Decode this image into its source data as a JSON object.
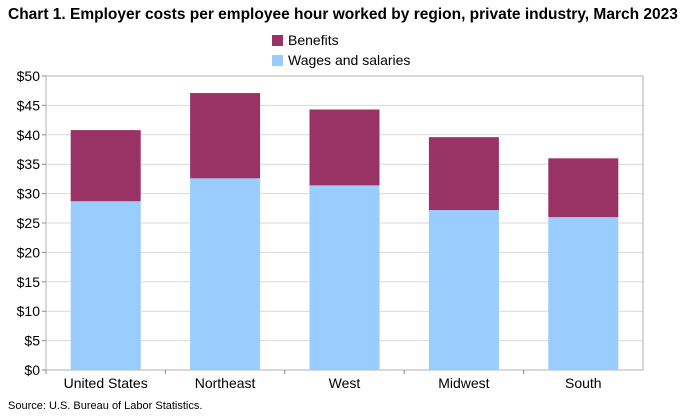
{
  "chart_data": {
    "type": "bar",
    "stacked": true,
    "title": "Chart 1. Employer costs per employee hour worked by region, private industry, March 2023",
    "categories": [
      "United States",
      "Northeast",
      "West",
      "Midwest",
      "South"
    ],
    "series": [
      {
        "name": "Wages and salaries",
        "color": "#99ccff",
        "values": [
          28.7,
          32.6,
          31.4,
          27.2,
          26.0
        ]
      },
      {
        "name": "Benefits",
        "color": "#993366",
        "values": [
          12.1,
          14.5,
          12.9,
          12.4,
          10.0
        ]
      }
    ],
    "legend_order": [
      "Benefits",
      "Wages and salaries"
    ],
    "ylim": [
      0,
      50
    ],
    "yticks": [
      "$0",
      "$5",
      "$10",
      "$15",
      "$20",
      "$25",
      "$30",
      "$35",
      "$40",
      "$45",
      "$50"
    ],
    "ytick_values": [
      0,
      5,
      10,
      15,
      20,
      25,
      30,
      35,
      40,
      45,
      50
    ],
    "grid": true,
    "legend_position": "top-center",
    "source": "Source: U.S. Bureau of Labor Statistics."
  }
}
